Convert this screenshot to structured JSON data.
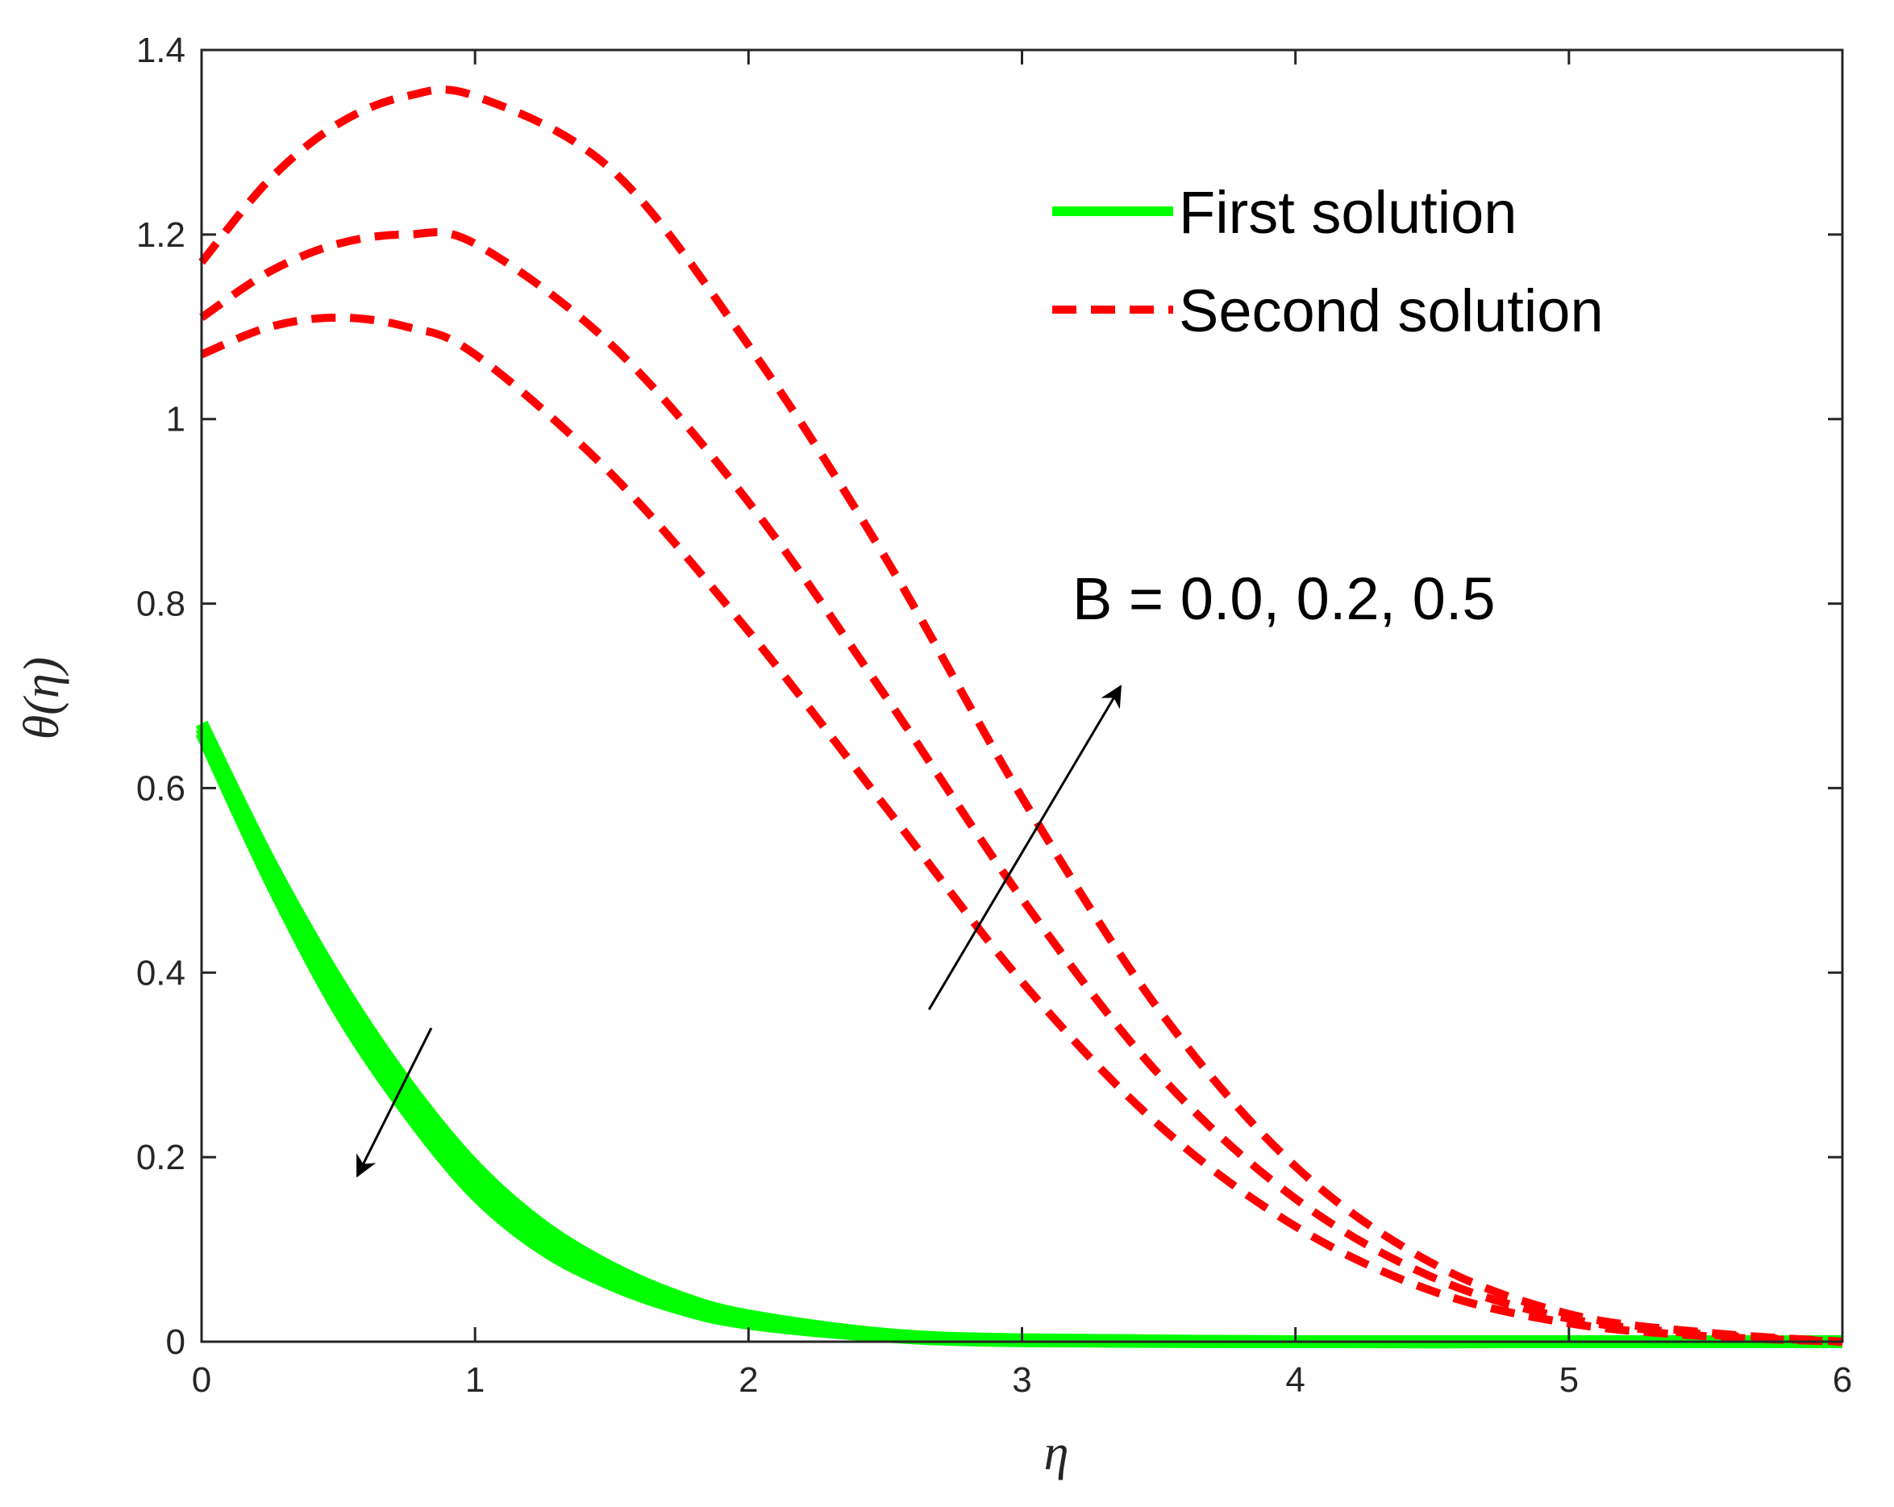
{
  "chart_data": {
    "type": "line",
    "title": "",
    "xlabel": "η",
    "ylabel": "θ(η)",
    "xlim": [
      0,
      6
    ],
    "ylim": [
      0,
      1.4
    ],
    "xticks": [
      0,
      1,
      2,
      3,
      4,
      5,
      6
    ],
    "yticks": [
      0,
      0.2,
      0.4,
      0.6,
      0.8,
      1,
      1.2,
      1.4
    ],
    "xtick_labels": [
      "0",
      "1",
      "2",
      "3",
      "4",
      "5",
      "6"
    ],
    "ytick_labels": [
      "0",
      "0.2",
      "0.4",
      "0.6",
      "0.8",
      "1",
      "1.2",
      "1.4"
    ],
    "grid": false,
    "legend_position": "top-right",
    "legend": [
      {
        "label": "First solution",
        "style": "solid",
        "color": "#00ff00"
      },
      {
        "label": "Second solution",
        "style": "dashed",
        "color": "#ff0000"
      }
    ],
    "annotation": "B = 0.0, 0.2, 0.5",
    "series": [
      {
        "group": "first",
        "color": "#00ff00",
        "style": "solid",
        "x": [
          0,
          0.25,
          0.5,
          0.75,
          1.0,
          1.25,
          1.5,
          1.75,
          2.0,
          2.5,
          3.0,
          4.0,
          5.0,
          6.0
        ],
        "y": [
          0.67,
          0.52,
          0.39,
          0.28,
          0.19,
          0.125,
          0.08,
          0.048,
          0.028,
          0.008,
          0.002,
          0.0,
          0.0,
          0.0
        ]
      },
      {
        "group": "first",
        "color": "#00ff00",
        "style": "solid",
        "x": [
          0,
          0.25,
          0.5,
          0.75,
          1.0,
          1.25,
          1.5,
          1.75,
          2.0,
          2.5,
          3.0,
          4.0,
          5.0,
          6.0
        ],
        "y": [
          0.665,
          0.51,
          0.375,
          0.265,
          0.175,
          0.113,
          0.071,
          0.042,
          0.024,
          0.007,
          0.002,
          0.0,
          0.0,
          0.0
        ]
      },
      {
        "group": "first",
        "color": "#00ff00",
        "style": "solid",
        "x": [
          0,
          0.25,
          0.5,
          0.75,
          1.0,
          1.25,
          1.5,
          1.75,
          2.0,
          2.5,
          3.0,
          4.0,
          5.0,
          6.0
        ],
        "y": [
          0.66,
          0.5,
          0.36,
          0.25,
          0.16,
          0.1,
          0.062,
          0.036,
          0.02,
          0.006,
          0.001,
          0.0,
          0.0,
          0.0
        ]
      },
      {
        "group": "second",
        "color": "#ff0000",
        "style": "dashed",
        "x": [
          0,
          0.25,
          0.5,
          0.75,
          1.0,
          1.5,
          2.0,
          2.5,
          3.0,
          3.5,
          4.0,
          4.5,
          5.0,
          5.5,
          6.0
        ],
        "y": [
          1.07,
          1.1,
          1.11,
          1.1,
          1.07,
          0.94,
          0.77,
          0.58,
          0.39,
          0.235,
          0.125,
          0.055,
          0.02,
          0.006,
          0.0
        ]
      },
      {
        "group": "second",
        "color": "#ff0000",
        "style": "dashed",
        "x": [
          0,
          0.25,
          0.5,
          0.75,
          1.0,
          1.5,
          2.0,
          2.5,
          3.0,
          3.5,
          4.0,
          4.5,
          5.0,
          5.5,
          6.0
        ],
        "y": [
          1.11,
          1.16,
          1.19,
          1.2,
          1.19,
          1.08,
          0.91,
          0.7,
          0.48,
          0.29,
          0.155,
          0.07,
          0.025,
          0.008,
          0.0
        ]
      },
      {
        "group": "second",
        "color": "#ff0000",
        "style": "dashed",
        "x": [
          0,
          0.25,
          0.5,
          0.75,
          1.0,
          1.5,
          2.0,
          2.5,
          3.0,
          3.5,
          4.0,
          4.5,
          5.0,
          5.5,
          6.0
        ],
        "y": [
          1.17,
          1.26,
          1.32,
          1.35,
          1.35,
          1.27,
          1.08,
          0.85,
          0.59,
          0.36,
          0.19,
          0.085,
          0.03,
          0.01,
          0.0
        ]
      }
    ],
    "arrows": [
      {
        "name": "first-solution-trend-arrow",
        "from": [
          0.84,
          0.34
        ],
        "to": [
          0.57,
          0.18
        ]
      },
      {
        "name": "second-solution-trend-arrow",
        "from": [
          2.66,
          0.36
        ],
        "to": [
          3.36,
          0.71
        ]
      }
    ]
  }
}
